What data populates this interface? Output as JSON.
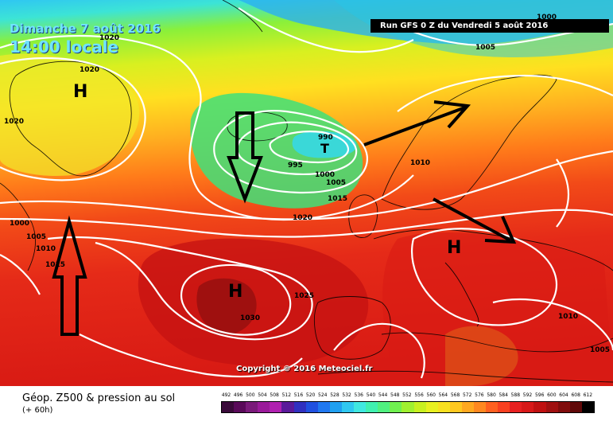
{
  "header": {
    "date_label": "Dimanche 7 août 2016",
    "time_label": "14:00 locale",
    "run_label": "Run GFS 0 Z du Vendredi 5 août 2016",
    "copyright": "Copyright © 2016 Meteociel.fr"
  },
  "footer": {
    "title": "Géop. Z500 & pression au sol",
    "subtitle": "(+ 60h)"
  },
  "isobar_labels": [
    "1020",
    "1020",
    "1020",
    "1000",
    "1005",
    "1010",
    "1015",
    "995",
    "990",
    "1000",
    "1005",
    "1015",
    "1020",
    "1025",
    "1030",
    "1010",
    "1005",
    "1010",
    "1005",
    "1000"
  ],
  "pressure_centers": [
    {
      "name": "high-greenland",
      "label": "H"
    },
    {
      "name": "high-azores",
      "label": "H"
    },
    {
      "name": "high-europe",
      "label": "H"
    },
    {
      "name": "low-iceland",
      "label": "T"
    }
  ],
  "color_scale": {
    "labels": [
      "492",
      "496",
      "500",
      "504",
      "508",
      "512",
      "516",
      "520",
      "524",
      "528",
      "532",
      "536",
      "540",
      "544",
      "548",
      "552",
      "556",
      "560",
      "564",
      "568",
      "572",
      "576",
      "580",
      "584",
      "588",
      "592",
      "596",
      "600",
      "604",
      "608",
      "612"
    ],
    "colors": [
      "#3a0a3a",
      "#5a0a5a",
      "#7a1a7a",
      "#9a1a9a",
      "#b020b0",
      "#5a1a9a",
      "#3030c0",
      "#2050e0",
      "#2078f0",
      "#20a0f0",
      "#30c8f0",
      "#40e8e0",
      "#40f0b0",
      "#50f080",
      "#70f050",
      "#a0f030",
      "#c8f020",
      "#e8f020",
      "#f8e020",
      "#ffc820",
      "#ffa820",
      "#ff8820",
      "#ff6020",
      "#f84020",
      "#e82020",
      "#d81818",
      "#c01010",
      "#a01010",
      "#800c0c",
      "#600808",
      "#000000"
    ]
  },
  "arrows": [
    "arrow-down-iceland",
    "arrow-up-atlantic",
    "arrow-northeast-scandinavia",
    "arrow-southeast-europe"
  ]
}
